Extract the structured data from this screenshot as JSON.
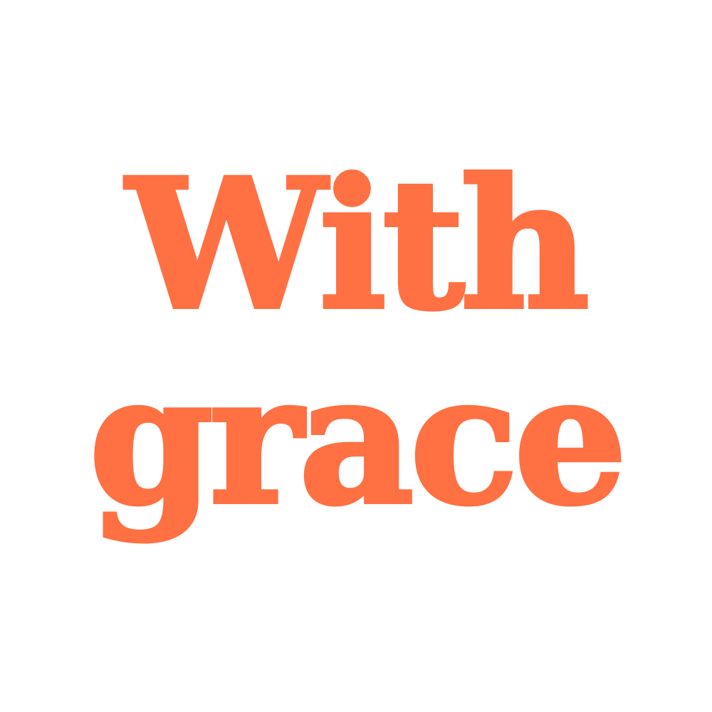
{
  "text": {
    "line1": "With",
    "line2": "grace"
  },
  "colors": {
    "text": "#FF7043",
    "background": "#FFFFFF"
  }
}
